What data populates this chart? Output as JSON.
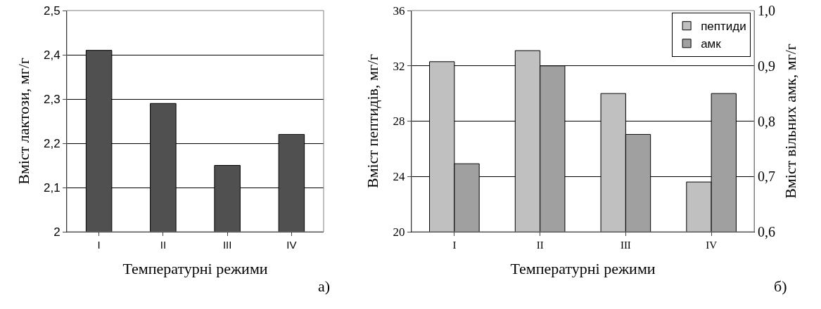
{
  "chart_data": [
    {
      "type": "bar",
      "xlabel": "Температурні режими",
      "ylabel": "Вміст лактози, мг/г",
      "categories": [
        "I",
        "II",
        "III",
        "IV"
      ],
      "values": [
        2.41,
        2.29,
        2.15,
        2.22
      ],
      "color": "#505050",
      "ylim": [
        2,
        2.5
      ],
      "yticks": [
        {
          "value": 2,
          "label": "2"
        },
        {
          "value": 2.1,
          "label": "2,1"
        },
        {
          "value": 2.2,
          "label": "2,2"
        },
        {
          "value": 2.3,
          "label": "2,3"
        },
        {
          "value": 2.4,
          "label": "2,4"
        },
        {
          "value": 2.5,
          "label": "2,5"
        }
      ],
      "grid": "y",
      "legend": false,
      "annotations": [
        "а)"
      ]
    },
    {
      "type": "bar",
      "xlabel": "Температурні режими",
      "ylabel": "Вміст пептидів, мг/г",
      "y2label": "Вміст вільних амк, мг/г",
      "categories": [
        "I",
        "II",
        "III",
        "IV"
      ],
      "series": [
        {
          "name": "пептиди",
          "color": "#c0c0c0",
          "values": [
            32.3,
            33.1,
            30.0,
            23.6
          ]
        },
        {
          "name": "амк",
          "color": "#a0a0a0",
          "axis": "y2",
          "values": [
            0.723,
            0.9,
            0.776,
            0.85
          ]
        }
      ],
      "ylim": [
        20,
        36
      ],
      "yticks": [
        20,
        24,
        28,
        32,
        36
      ],
      "y2lim": [
        0.6,
        1.0
      ],
      "y2ticks": [
        {
          "value": 0.6,
          "label": "0,6"
        },
        {
          "value": 0.7,
          "label": "0,7"
        },
        {
          "value": 0.8,
          "label": "0,8"
        },
        {
          "value": 0.9,
          "label": "0,9"
        },
        {
          "value": 1.0,
          "label": "1,0"
        }
      ],
      "grid": "y",
      "legend": "top right",
      "annotations": [
        "б)"
      ]
    }
  ]
}
